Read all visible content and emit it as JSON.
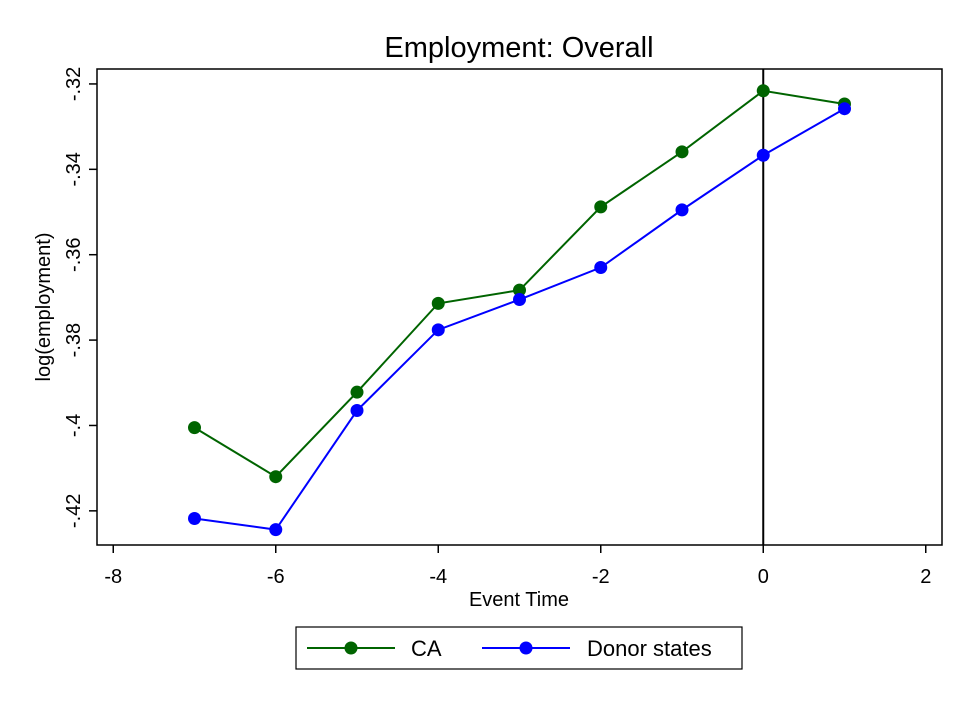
{
  "chart_data": {
    "type": "line",
    "title": "Employment: Overall",
    "xlabel": "Event Time",
    "ylabel": "log(employment)",
    "xlim": [
      -8.2,
      2.2
    ],
    "ylim": [
      -0.428,
      -0.3165
    ],
    "x_ticks": [
      -8,
      -6,
      -4,
      -2,
      0,
      2
    ],
    "x_tick_labels": [
      "-8",
      "-6",
      "-4",
      "-2",
      "0",
      "2"
    ],
    "y_ticks": [
      -0.32,
      -0.34,
      -0.36,
      -0.38,
      -0.4,
      -0.42
    ],
    "y_tick_labels": [
      "-.32",
      "-.34",
      "-.36",
      "-.38",
      "-.4",
      "-.42"
    ],
    "vertical_reference_line_x": 0,
    "grid": false,
    "legend_position": "bottom",
    "x": [
      -7,
      -6,
      -5,
      -4,
      -3,
      -2,
      -1,
      0,
      1
    ],
    "series": [
      {
        "name": "CA",
        "color": "#006400",
        "values": [
          -0.4005,
          -0.412,
          -0.3922,
          -0.3714,
          -0.3683,
          -0.3488,
          -0.3359,
          -0.3216,
          -0.3247
        ]
      },
      {
        "name": "Donor states",
        "color": "#0000ff",
        "values": [
          -0.4218,
          -0.4244,
          -0.3965,
          -0.3776,
          -0.3705,
          -0.363,
          -0.3495,
          -0.3367,
          -0.3258
        ]
      }
    ]
  }
}
